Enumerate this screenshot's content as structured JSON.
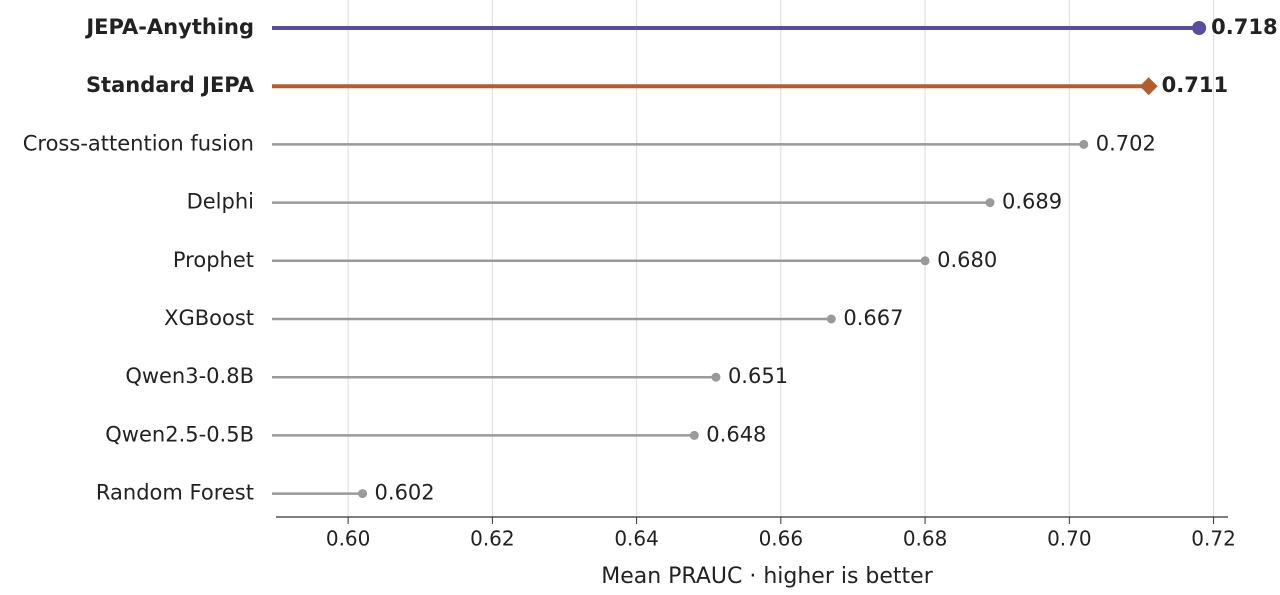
{
  "chart_data": {
    "type": "lollipop",
    "orientation": "horizontal",
    "categories": [
      "JEPA-Anything",
      "Standard JEPA",
      "Cross-attention fusion",
      "Delphi",
      "Prophet",
      "XGBoost",
      "Qwen3-0.8B",
      "Qwen2.5-0.5B",
      "Random Forest"
    ],
    "values": [
      0.718,
      0.711,
      0.702,
      0.689,
      0.68,
      0.667,
      0.651,
      0.648,
      0.602
    ],
    "value_labels": [
      "0.718",
      "0.711",
      "0.702",
      "0.689",
      "0.680",
      "0.667",
      "0.651",
      "0.648",
      "0.602"
    ],
    "colors": [
      "#5a4da0",
      "#b25e2f",
      "#9a9a9a",
      "#9a9a9a",
      "#9a9a9a",
      "#9a9a9a",
      "#9a9a9a",
      "#9a9a9a",
      "#9a9a9a"
    ],
    "markers": [
      "circle",
      "diamond",
      "dot",
      "dot",
      "dot",
      "dot",
      "dot",
      "dot",
      "dot"
    ],
    "bold": [
      true,
      true,
      false,
      false,
      false,
      false,
      false,
      false,
      false
    ],
    "xlabel": "Mean PRAUC  ·  higher is better",
    "xlim": [
      0.59,
      0.722
    ],
    "xticks": [
      {
        "value": 0.6,
        "label": "0.60"
      },
      {
        "value": 0.62,
        "label": "0.62"
      },
      {
        "value": 0.64,
        "label": "0.64"
      },
      {
        "value": 0.66,
        "label": "0.66"
      },
      {
        "value": 0.68,
        "label": "0.68"
      },
      {
        "value": 0.7,
        "label": "0.70"
      },
      {
        "value": 0.72,
        "label": "0.72"
      }
    ],
    "grid": true
  }
}
